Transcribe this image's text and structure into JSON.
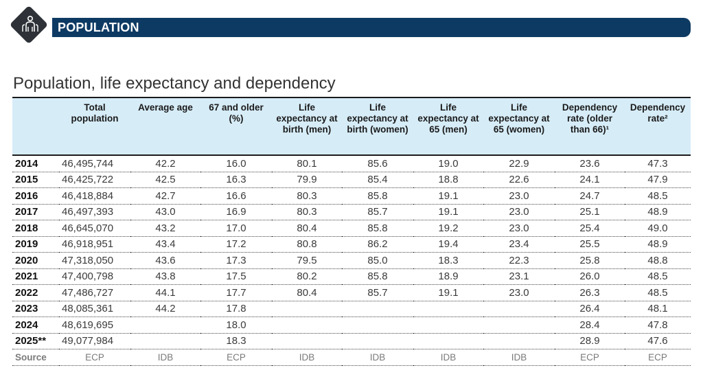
{
  "banner": {
    "label": "POPULATION",
    "icon": "people-group-icon"
  },
  "title": "Population, life expectancy and dependency",
  "headers": [
    "",
    "Total population",
    "Average age",
    "67 and older (%)",
    "Life expectancy at birth (men)",
    "Life expectancy at birth (women)",
    "Life expectancy at 65 (men)",
    "Life expectancy at 65 (women)",
    "Dependency rate (older than 66)¹",
    "Dependency rate²"
  ],
  "rows": [
    [
      "2014",
      "46,495,744",
      "42.2",
      "16.0",
      "80.1",
      "85.6",
      "19.0",
      "22.9",
      "23.6",
      "47.3"
    ],
    [
      "2015",
      "46,425,722",
      "42.5",
      "16.3",
      "79.9",
      "85.4",
      "18.8",
      "22.6",
      "24.1",
      "47.9"
    ],
    [
      "2016",
      "46,418,884",
      "42.7",
      "16.6",
      "80.3",
      "85.8",
      "19.1",
      "23.0",
      "24.7",
      "48.5"
    ],
    [
      "2017",
      "46,497,393",
      "43.0",
      "16.9",
      "80.3",
      "85.7",
      "19.1",
      "23.0",
      "25.1",
      "48.9"
    ],
    [
      "2018",
      "46,645,070",
      "43.2",
      "17.0",
      "80.4",
      "85.8",
      "19.2",
      "23.0",
      "25.4",
      "49.0"
    ],
    [
      "2019",
      "46,918,951",
      "43.4",
      "17.2",
      "80.8",
      "86.2",
      "19.4",
      "23.4",
      "25.5",
      "48.9"
    ],
    [
      "2020",
      "47,318,050",
      "43.6",
      "17.3",
      "79.5",
      "85.0",
      "18.3",
      "22.3",
      "25.8",
      "48.8"
    ],
    [
      "2021",
      "47,400,798",
      "43.8",
      "17.5",
      "80.2",
      "85.8",
      "18.9",
      "23.1",
      "26.0",
      "48.5"
    ],
    [
      "2022",
      "47,486,727",
      "44.1",
      "17.7",
      "80.4",
      "85.7",
      "19.1",
      "23.0",
      "26.3",
      "48.5"
    ],
    [
      "2023",
      "48,085,361",
      "44.2",
      "17.8",
      "",
      "",
      "",
      "",
      "26.4",
      "48.1"
    ],
    [
      "2024",
      "48,619,695",
      "",
      "18.0",
      "",
      "",
      "",
      "",
      "28.4",
      "47.8"
    ],
    [
      "2025**",
      "49,077,984",
      "",
      "18.3",
      "",
      "",
      "",
      "",
      "28.9",
      "47.6"
    ]
  ],
  "source_row": [
    "Source",
    "ECP",
    "IDB",
    "ECP",
    "IDB",
    "IDB",
    "IDB",
    "IDB",
    "ECP",
    "ECP"
  ]
}
